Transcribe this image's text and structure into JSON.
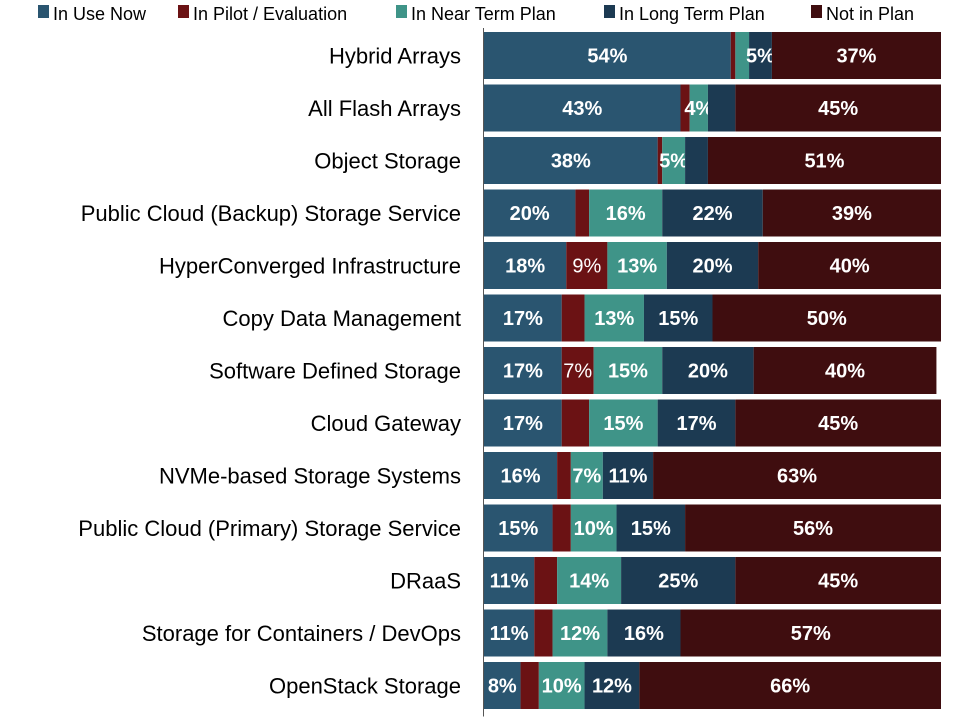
{
  "chart_data": {
    "type": "bar",
    "orientation": "horizontal",
    "stacked": true,
    "grid": false,
    "legend_position": "top",
    "xlim": [
      0,
      100
    ],
    "categories": [
      "Hybrid Arrays",
      "All Flash Arrays",
      "Object Storage",
      "Public Cloud (Backup) Storage Service",
      "HyperConverged Infrastructure",
      "Copy Data Management",
      "Software Defined Storage",
      "Cloud Gateway",
      "NVMe-based Storage Systems",
      "Public Cloud (Primary) Storage Service",
      "DRaaS",
      "Storage for Containers / DevOps",
      "OpenStack Storage"
    ],
    "series": [
      {
        "name": "In Use Now",
        "color": "#2a5570",
        "values": [
          54,
          43,
          38,
          20,
          18,
          17,
          17,
          17,
          16,
          15,
          11,
          11,
          8
        ],
        "labels": [
          "54%",
          "43%",
          "38%",
          "20%",
          "18%",
          "17%",
          "17%",
          "17%",
          "16%",
          "15%",
          "11%",
          "11%",
          "8%"
        ],
        "bold": true
      },
      {
        "name": "In Pilot / Evaluation",
        "color": "#6b1214",
        "values": [
          1,
          2,
          1,
          3,
          9,
          5,
          7,
          6,
          3,
          4,
          5,
          4,
          4
        ],
        "labels": [
          "",
          "",
          "",
          "",
          "9%",
          "",
          "7%",
          "",
          "",
          "",
          "",
          "",
          ""
        ],
        "bold": false
      },
      {
        "name": "In Near Term Plan",
        "color": "#3f9488",
        "values": [
          3,
          4,
          5,
          16,
          13,
          13,
          15,
          15,
          7,
          10,
          14,
          12,
          10
        ],
        "labels": [
          "",
          "4%",
          "5%",
          "16%",
          "13%",
          "13%",
          "15%",
          "15%",
          "7%",
          "10%",
          "14%",
          "12%",
          "10%"
        ],
        "bold": true
      },
      {
        "name": "In Long Term Plan",
        "color": "#1c3a52",
        "values": [
          5,
          6,
          5,
          22,
          20,
          15,
          20,
          17,
          11,
          15,
          25,
          16,
          12
        ],
        "labels": [
          "5%",
          "",
          "",
          "22%",
          "20%",
          "15%",
          "20%",
          "17%",
          "11%",
          "15%",
          "25%",
          "16%",
          "12%"
        ],
        "bold": true
      },
      {
        "name": "Not in Plan",
        "color": "#3f0d0f",
        "values": [
          37,
          45,
          51,
          39,
          40,
          50,
          40,
          45,
          63,
          56,
          45,
          57,
          66
        ],
        "labels": [
          "37%",
          "45%",
          "51%",
          "39%",
          "40%",
          "50%",
          "40%",
          "45%",
          "63%",
          "56%",
          "45%",
          "57%",
          "66%"
        ],
        "bold": true
      }
    ]
  }
}
